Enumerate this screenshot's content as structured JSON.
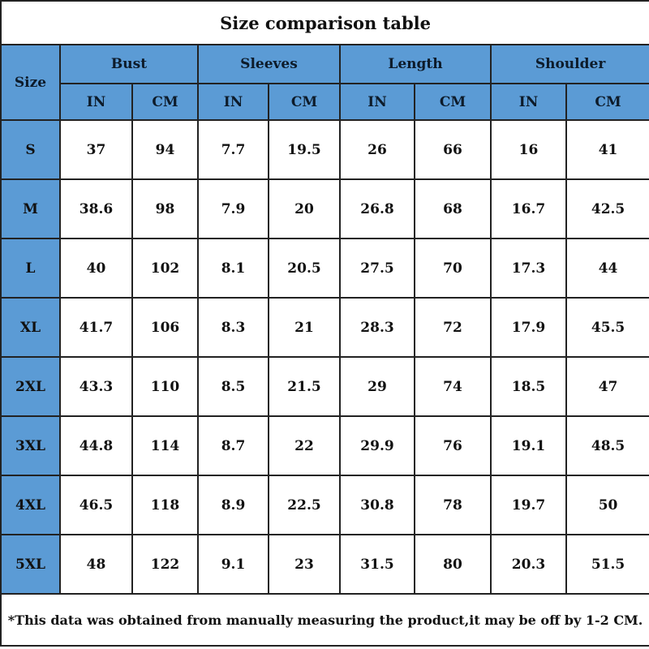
{
  "title": "Size comparison table",
  "header": {
    "size_label": "Size",
    "groups": [
      "Bust",
      "Sleeves",
      "Length",
      "Shoulder"
    ],
    "units": [
      "IN",
      "CM"
    ]
  },
  "rows": [
    {
      "size": "S",
      "values": [
        "37",
        "94",
        "7.7",
        "19.5",
        "26",
        "66",
        "16",
        "41"
      ]
    },
    {
      "size": "M",
      "values": [
        "38.6",
        "98",
        "7.9",
        "20",
        "26.8",
        "68",
        "16.7",
        "42.5"
      ]
    },
    {
      "size": "L",
      "values": [
        "40",
        "102",
        "8.1",
        "20.5",
        "27.5",
        "70",
        "17.3",
        "44"
      ]
    },
    {
      "size": "XL",
      "values": [
        "41.7",
        "106",
        "8.3",
        "21",
        "28.3",
        "72",
        "17.9",
        "45.5"
      ]
    },
    {
      "size": "2XL",
      "values": [
        "43.3",
        "110",
        "8.5",
        "21.5",
        "29",
        "74",
        "18.5",
        "47"
      ]
    },
    {
      "size": "3XL",
      "values": [
        "44.8",
        "114",
        "8.7",
        "22",
        "29.9",
        "76",
        "19.1",
        "48.5"
      ]
    },
    {
      "size": "4XL",
      "values": [
        "46.5",
        "118",
        "8.9",
        "22.5",
        "30.8",
        "78",
        "19.7",
        "50"
      ]
    },
    {
      "size": "5XL",
      "values": [
        "48",
        "122",
        "9.1",
        "23",
        "31.5",
        "80",
        "20.3",
        "51.5"
      ]
    }
  ],
  "footnote": "*This data was obtained from manually measuring the product,it may be off by 1-2 CM.",
  "colors": {
    "header_bg": "#5b9bd5",
    "border": "#222222"
  }
}
